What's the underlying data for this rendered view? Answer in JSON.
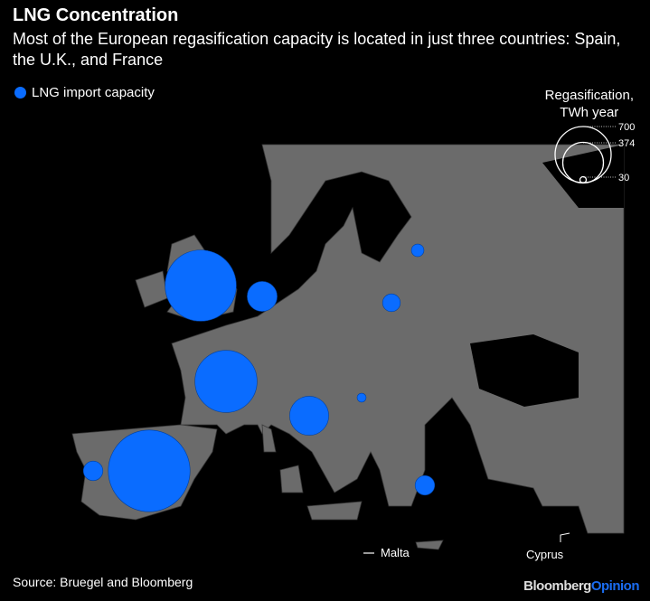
{
  "title": "LNG Concentration",
  "subtitle": "Most of the European regasification capacity is located in just three countries: Spain, the U.K., and France",
  "legend": {
    "label": "LNG import capacity",
    "color": "#0a6cff"
  },
  "size_legend": {
    "title_line1": "Regasification,",
    "title_line2": "TWh year",
    "values": [
      "700",
      "374",
      "30"
    ]
  },
  "map_labels": {
    "malta": "Malta",
    "cyprus": "Cyprus"
  },
  "source": "Source: Bruegel and Bloomberg",
  "brand": {
    "part1": "Bloomberg",
    "part2": "Opinion"
  },
  "terminals": [
    {
      "country": "Spain",
      "capacity_twh_est": 1490
    },
    {
      "country": "U.K.",
      "capacity_twh_est": 1130
    },
    {
      "country": "France",
      "capacity_twh_est": 860
    },
    {
      "country": "Italy",
      "capacity_twh_est": 340
    },
    {
      "country": "Netherlands/Belgium",
      "capacity_twh_est": 200
    },
    {
      "country": "Portugal",
      "capacity_twh_est": 85
    },
    {
      "country": "Greece",
      "capacity_twh_est": 85
    },
    {
      "country": "Poland",
      "capacity_twh_est": 70
    },
    {
      "country": "Lithuania",
      "capacity_twh_est": 35
    },
    {
      "country": "Croatia",
      "capacity_twh_est": 18
    }
  ]
}
